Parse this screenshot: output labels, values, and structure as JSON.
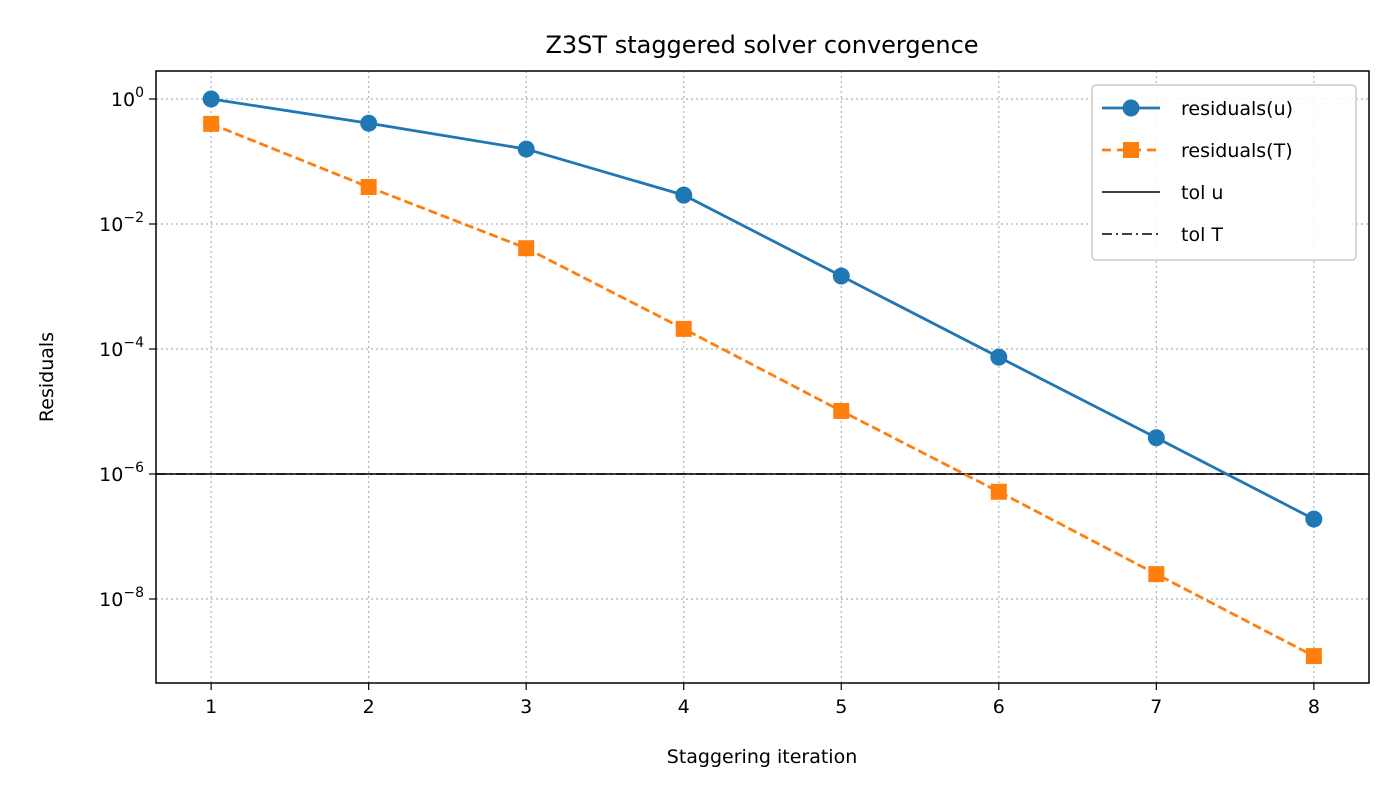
{
  "chart_data": {
    "type": "line",
    "title": "Z3ST staggered solver convergence",
    "xlabel": "Staggering iteration",
    "ylabel": "Residuals",
    "yscale": "log",
    "xlim": [
      0.65,
      8.35
    ],
    "ylim_log10": [
      -9.344,
      0.448
    ],
    "xticks": [
      1,
      2,
      3,
      4,
      5,
      6,
      7,
      8
    ],
    "yticks_exp": [
      0,
      -2,
      -4,
      -6,
      -8
    ],
    "grid": true,
    "legend_position": "top-right",
    "x": [
      1,
      2,
      3,
      4,
      5,
      6,
      7,
      8
    ],
    "series": [
      {
        "name": "residuals(u)",
        "color": "#1f77b4",
        "linestyle": "solid",
        "marker": "circle",
        "values": [
          1.0,
          0.41,
          0.158,
          0.029,
          0.00147,
          7.4e-05,
          3.8e-06,
          1.9e-07
        ]
      },
      {
        "name": "residuals(T)",
        "color": "#ff7f0e",
        "linestyle": "dashed",
        "marker": "square",
        "values": [
          0.4,
          0.039,
          0.0041,
          0.00021,
          1.02e-05,
          5.2e-07,
          2.5e-08,
          1.22e-09
        ]
      }
    ],
    "hlines": [
      {
        "name": "tol u",
        "value": 1e-06,
        "color": "#000000",
        "linestyle": "solid"
      },
      {
        "name": "tol T",
        "value": 1e-06,
        "color": "#000000",
        "linestyle": "dashdot"
      }
    ]
  }
}
